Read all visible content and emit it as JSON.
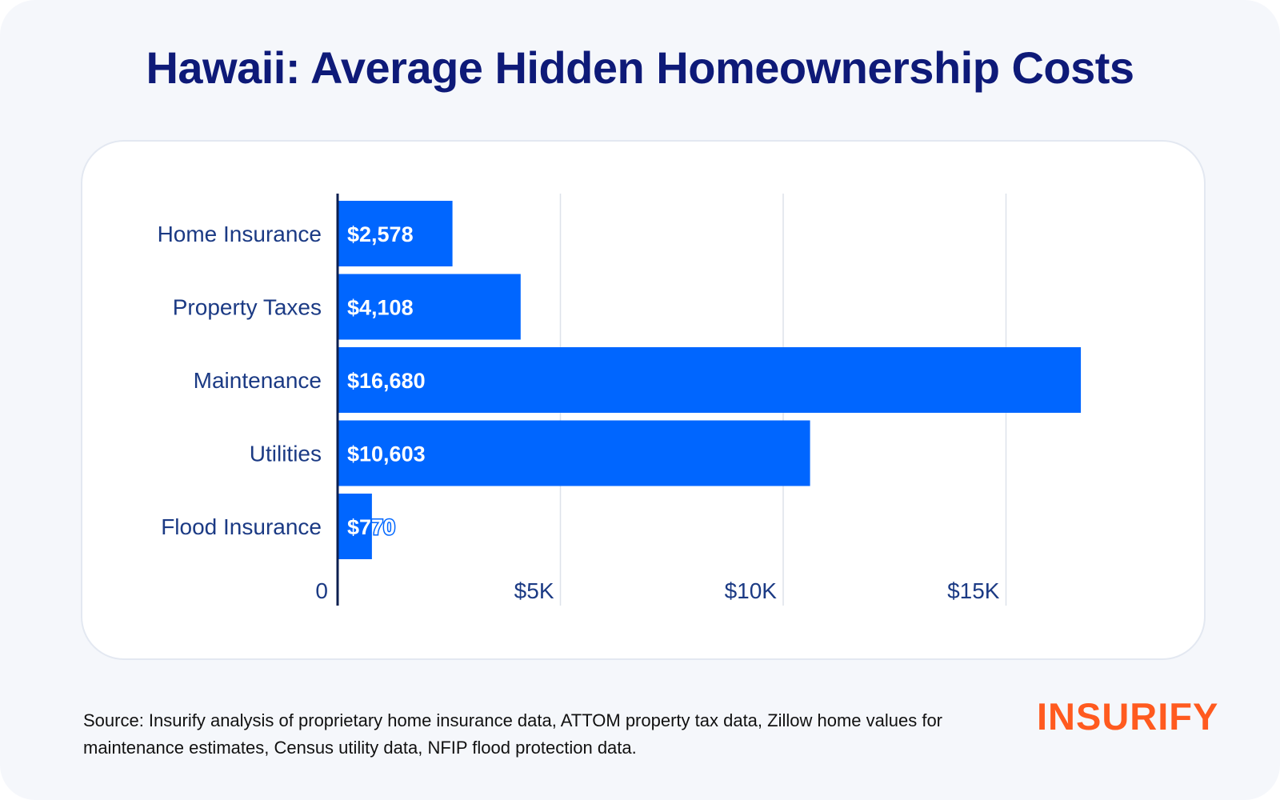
{
  "title": "Hawaii: Average Hidden Homeownership Costs",
  "source": "Source: Insurify analysis of proprietary home insurance data, ATTOM property tax data, Zillow home values for maintenance estimates, Census utility data, NFIP flood protection data.",
  "logo": "INSURIFY",
  "colors": {
    "bar": "#0066ff",
    "title": "#0e1a78",
    "label": "#1b3a84",
    "axis": "#0d1f4f",
    "grid": "#dde2ea",
    "logo": "#ff5a1f"
  },
  "chart_data": {
    "type": "bar",
    "orientation": "horizontal",
    "categories": [
      "Home Insurance",
      "Property Taxes",
      "Maintenance",
      "Utilities",
      "Flood Insurance"
    ],
    "values": [
      2578,
      4108,
      16680,
      10603,
      770
    ],
    "data_labels": [
      "$2,578",
      "$4,108",
      "$16,680",
      "$10,603",
      "$770"
    ],
    "xticks": [
      0,
      5000,
      10000,
      15000
    ],
    "xtick_labels": [
      "0",
      "$5K",
      "$10K",
      "$15K"
    ],
    "xlim": [
      0,
      17000
    ],
    "grid": true,
    "xlabel": "",
    "ylabel": ""
  }
}
